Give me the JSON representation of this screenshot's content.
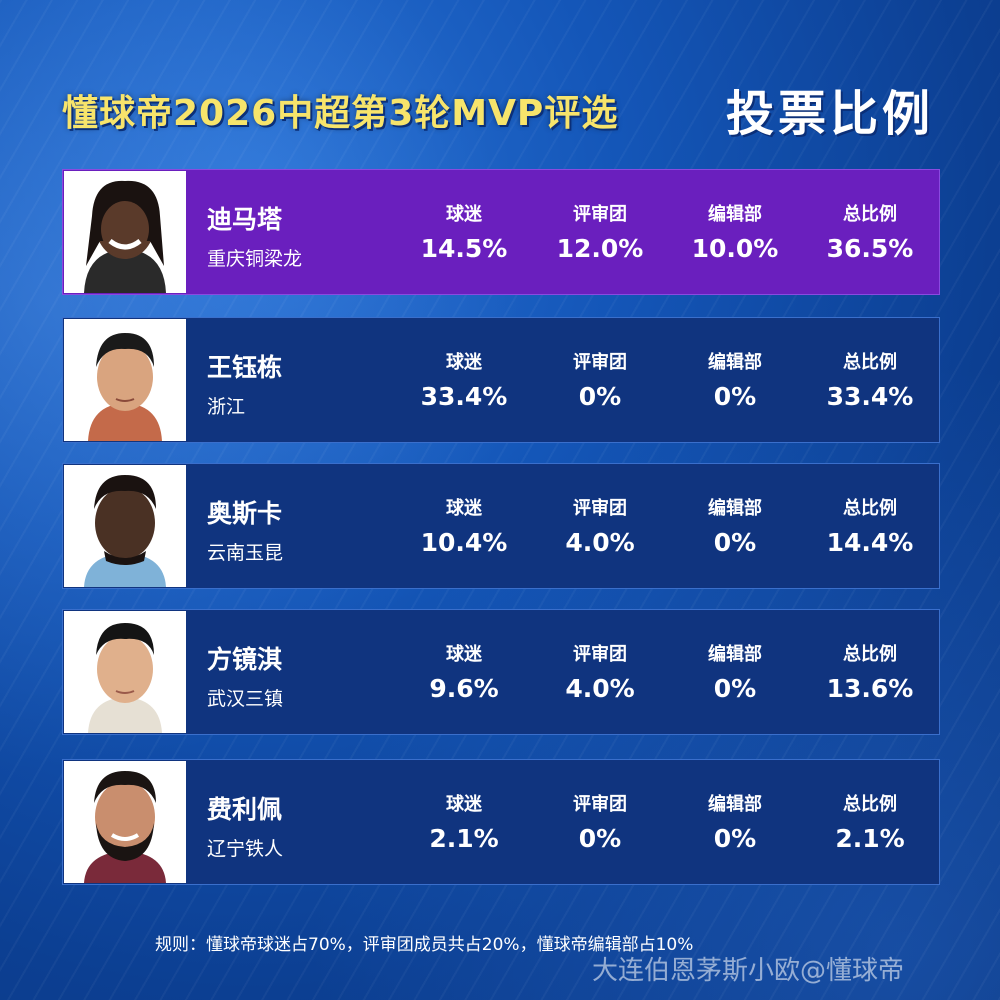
{
  "header": {
    "title": "懂球帝2026中超第3轮MVP评选",
    "side_title": "投票比例"
  },
  "labels": {
    "fans": "球迷",
    "jury": "评审团",
    "editors": "编辑部",
    "total": "总比例"
  },
  "players": [
    {
      "name": "迪马塔",
      "team": "重庆铜梁龙",
      "fans": "14.5%",
      "jury": "12.0%",
      "editors": "10.0%",
      "total": "36.5%",
      "highlight": true,
      "skin": "#5a3a2a"
    },
    {
      "name": "王钰栋",
      "team": "浙江",
      "fans": "33.4%",
      "jury": "0%",
      "editors": "0%",
      "total": "33.4%",
      "highlight": false,
      "skin": "#d9a47f"
    },
    {
      "name": "奥斯卡",
      "team": "云南玉昆",
      "fans": "10.4%",
      "jury": "4.0%",
      "editors": "0%",
      "total": "14.4%",
      "highlight": false,
      "skin": "#4a3124"
    },
    {
      "name": "方镜淇",
      "team": "武汉三镇",
      "fans": "9.6%",
      "jury": "4.0%",
      "editors": "0%",
      "total": "13.6%",
      "highlight": false,
      "skin": "#e0b08c"
    },
    {
      "name": "费利佩",
      "team": "辽宁铁人",
      "fans": "2.1%",
      "jury": "0%",
      "editors": "0%",
      "total": "2.1%",
      "highlight": false,
      "skin": "#c98e6e"
    }
  ],
  "footer": {
    "rules": "规则：懂球帝球迷占70%，评审团成员共占20%，懂球帝编辑部占10%",
    "watermark": "大连伯恩茅斯小欧@懂球帝"
  },
  "colors": {
    "highlight_row": "#6a1fbe",
    "normal_row": "#10347f",
    "title_yellow": "#f7e46b"
  }
}
